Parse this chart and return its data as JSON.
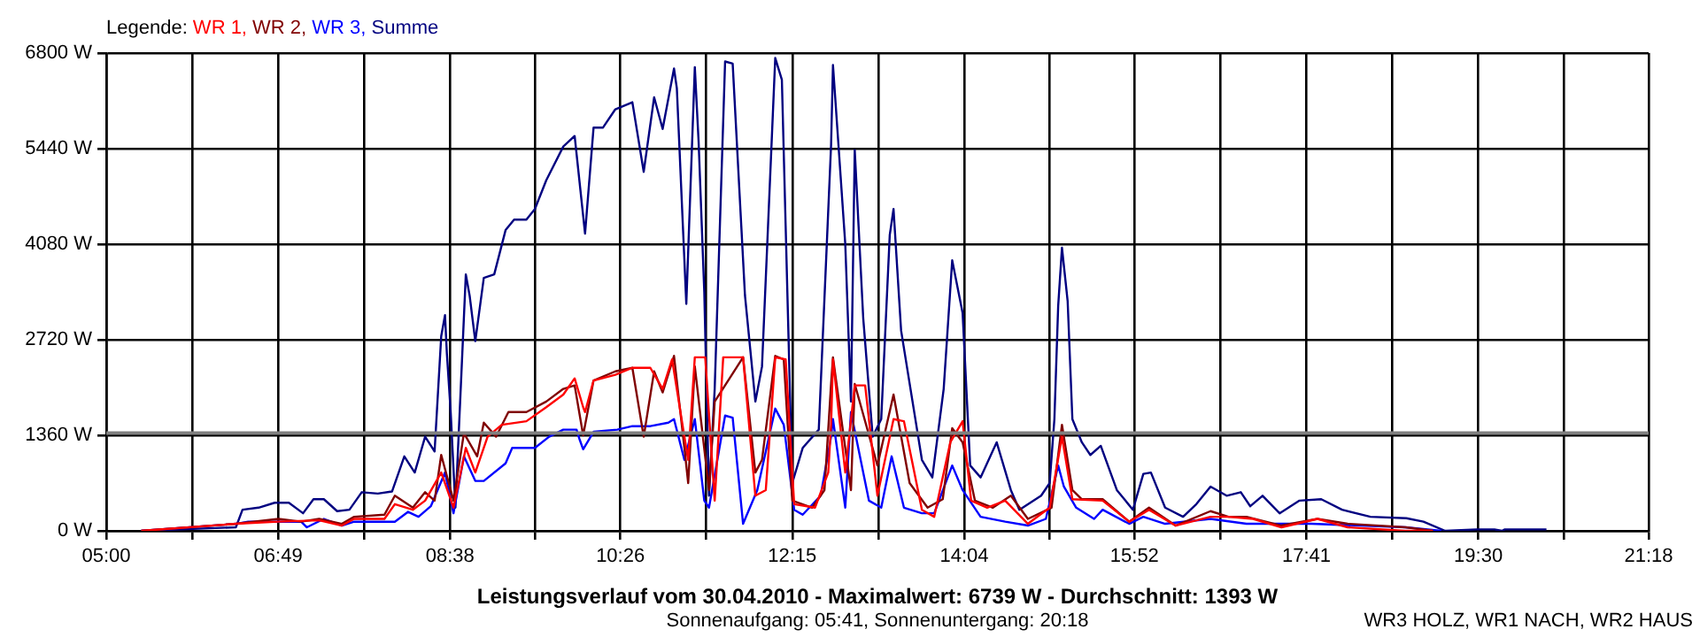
{
  "chart_data": {
    "type": "line",
    "title": "Leistungsverlauf vom 30.04.2010 - Maximalwert: 6739 W - Durchschnitt: 1393 W",
    "subtitle": "Sonnenaufgang: 05:41, Sonnenuntergang: 20:18",
    "legend_title": "Legende:",
    "annotations": [
      "WR3 HOLZ, WR1 NACH, WR2 HAUS"
    ],
    "xlim": [
      5,
      21.3
    ],
    "xticks": [
      {
        "value": 5,
        "label": "05:00"
      },
      {
        "value": 5.9083,
        "label": null
      },
      {
        "value": 6.8167,
        "label": "06:49"
      },
      {
        "value": 7.725,
        "label": null
      },
      {
        "value": 8.6333,
        "label": "08:38"
      },
      {
        "value": 9.5333,
        "label": null
      },
      {
        "value": 10.4333,
        "label": "10:26"
      },
      {
        "value": 11.3417,
        "label": null
      },
      {
        "value": 12.25,
        "label": "12:15"
      },
      {
        "value": 13.1583,
        "label": null
      },
      {
        "value": 14.0667,
        "label": "14:04"
      },
      {
        "value": 14.9667,
        "label": null
      },
      {
        "value": 15.8667,
        "label": "15:52"
      },
      {
        "value": 16.775,
        "label": null
      },
      {
        "value": 17.6833,
        "label": "17:41"
      },
      {
        "value": 18.5917,
        "label": null
      },
      {
        "value": 19.5,
        "label": "19:30"
      },
      {
        "value": 20.4,
        "label": null
      },
      {
        "value": 21.3,
        "label": "21:18"
      }
    ],
    "ylim": [
      0,
      6800
    ],
    "yticks": [
      {
        "value": 0,
        "label": "0 W"
      },
      {
        "value": 1360,
        "label": "1360 W"
      },
      {
        "value": 2720,
        "label": "2720 W"
      },
      {
        "value": 4080,
        "label": "4080 W"
      },
      {
        "value": 5440,
        "label": "5440 W"
      },
      {
        "value": 6800,
        "label": "6800 W"
      }
    ],
    "grid": true,
    "legend": "top left",
    "marker": "none",
    "line_style": "solid",
    "ref_lines": [
      {
        "axis": "y",
        "value": 1393,
        "color": "#808080"
      }
    ],
    "series": [
      {
        "name": "WR 1,",
        "color": "#ff0000",
        "x": [
          5.37,
          6.37,
          6.82,
          7.25,
          7.49,
          7.62,
          7.94,
          8.05,
          8.24,
          8.37,
          8.54,
          8.67,
          8.8,
          8.9,
          9.03,
          9.18,
          9.44,
          9.65,
          9.83,
          9.95,
          10.04,
          10.06,
          10.15,
          10.38,
          10.56,
          10.75,
          10.88,
          10.98,
          11.11,
          11.15,
          11.22,
          11.33,
          11.43,
          11.52,
          11.73,
          11.86,
          11.97,
          12.07,
          12.18,
          12.27,
          12.49,
          12.63,
          12.66,
          12.68,
          12.81,
          12.91,
          13.02,
          13.15,
          13.32,
          13.43,
          13.62,
          13.75,
          13.92,
          14.05,
          14.14,
          14.31,
          14.5,
          14.74,
          14.97,
          15.1,
          15.21,
          15.53,
          15.81,
          16.02,
          16.3,
          16.67,
          16.86,
          17.12,
          17.42,
          17.8,
          18.12,
          18.73,
          19.02
        ],
        "values": [
          0,
          100,
          130,
          150,
          75,
          170,
          170,
          380,
          300,
          430,
          830,
          330,
          1180,
          830,
          1340,
          1510,
          1560,
          1760,
          1940,
          2170,
          1760,
          1690,
          2140,
          2220,
          2320,
          2320,
          2020,
          2440,
          1340,
          1010,
          2470,
          2470,
          430,
          2470,
          2470,
          500,
          580,
          2470,
          2440,
          380,
          330,
          830,
          1510,
          2440,
          830,
          2070,
          2070,
          500,
          1590,
          1560,
          300,
          200,
          1260,
          1560,
          430,
          330,
          430,
          100,
          330,
          1340,
          450,
          430,
          130,
          300,
          75,
          200,
          200,
          170,
          50,
          170,
          50,
          0,
          0
        ]
      },
      {
        "name": "WR 2,",
        "color": "#800000",
        "x": [
          5.37,
          6.37,
          6.82,
          7.06,
          7.25,
          7.49,
          7.62,
          7.94,
          8.05,
          8.24,
          8.37,
          8.47,
          8.54,
          8.67,
          8.78,
          8.92,
          8.99,
          9.12,
          9.25,
          9.44,
          9.65,
          9.83,
          9.95,
          10.04,
          10.15,
          10.38,
          10.56,
          10.68,
          10.79,
          10.88,
          11.0,
          11.11,
          11.15,
          11.22,
          11.37,
          11.43,
          11.73,
          11.86,
          11.93,
          12.07,
          12.16,
          12.25,
          12.46,
          12.59,
          12.66,
          12.68,
          12.87,
          12.91,
          13.15,
          13.32,
          13.49,
          13.68,
          13.84,
          13.94,
          14.05,
          14.18,
          14.37,
          14.56,
          14.74,
          14.99,
          15.1,
          15.21,
          15.31,
          15.53,
          15.81,
          16.02,
          16.3,
          16.67,
          16.86,
          17.05,
          17.42,
          17.8,
          18.12,
          18.73,
          19.02
        ],
        "values": [
          0,
          100,
          170,
          130,
          170,
          100,
          200,
          230,
          500,
          330,
          550,
          430,
          1080,
          430,
          1390,
          1060,
          1540,
          1340,
          1690,
          1690,
          1840,
          2020,
          2070,
          1360,
          2140,
          2270,
          2320,
          1340,
          2270,
          1970,
          2490,
          1180,
          680,
          2340,
          580,
          1840,
          2470,
          830,
          1010,
          2490,
          2440,
          430,
          330,
          580,
          2090,
          2470,
          580,
          2090,
          930,
          1940,
          680,
          330,
          450,
          1460,
          1260,
          430,
          330,
          500,
          170,
          330,
          1510,
          580,
          450,
          450,
          130,
          330,
          75,
          280,
          200,
          200,
          75,
          170,
          100,
          50,
          0
        ]
      },
      {
        "name": "WR 3,",
        "color": "#0000ff",
        "x": [
          5.37,
          6.37,
          6.5,
          7.06,
          7.12,
          7.3,
          7.49,
          7.62,
          8.05,
          8.19,
          8.3,
          8.43,
          8.58,
          8.67,
          8.78,
          8.9,
          8.99,
          9.22,
          9.29,
          9.53,
          9.68,
          9.83,
          9.97,
          10.0,
          10.04,
          10.15,
          10.4,
          10.56,
          10.75,
          10.94,
          11.0,
          11.11,
          11.22,
          11.32,
          11.37,
          11.54,
          11.62,
          11.73,
          11.88,
          12.07,
          12.16,
          12.27,
          12.36,
          12.55,
          12.66,
          12.68,
          12.81,
          12.87,
          13.06,
          13.19,
          13.3,
          13.43,
          13.62,
          13.75,
          13.94,
          14.05,
          14.24,
          14.5,
          14.74,
          14.93,
          15.06,
          15.12,
          15.25,
          15.44,
          15.53,
          15.81,
          15.96,
          16.19,
          16.67,
          17.05,
          17.74,
          18.73,
          19.11
        ],
        "values": [
          0,
          100,
          130,
          130,
          50,
          170,
          75,
          130,
          130,
          270,
          200,
          350,
          830,
          250,
          1060,
          710,
          710,
          960,
          1180,
          1180,
          1340,
          1440,
          1440,
          1310,
          1160,
          1410,
          1440,
          1490,
          1490,
          1540,
          1590,
          1010,
          1590,
          430,
          330,
          1640,
          1610,
          100,
          580,
          1740,
          1510,
          300,
          230,
          500,
          1340,
          1590,
          330,
          1690,
          430,
          330,
          1060,
          330,
          250,
          250,
          930,
          580,
          200,
          130,
          75,
          170,
          930,
          630,
          330,
          170,
          300,
          100,
          200,
          100,
          170,
          100,
          100,
          50,
          0
        ]
      },
      {
        "name": "Summe",
        "color": "#000080",
        "x": [
          5.37,
          6.37,
          6.44,
          6.61,
          6.78,
          6.93,
          7.08,
          7.19,
          7.3,
          7.44,
          7.57,
          7.7,
          7.87,
          8.02,
          8.15,
          8.26,
          8.37,
          8.47,
          8.54,
          8.58,
          8.6,
          8.64,
          8.69,
          8.8,
          8.84,
          8.9,
          8.99,
          9.1,
          9.22,
          9.31,
          9.44,
          9.53,
          9.65,
          9.83,
          9.95,
          10.06,
          10.15,
          10.25,
          10.38,
          10.56,
          10.68,
          10.79,
          10.88,
          11.0,
          11.03,
          11.13,
          11.22,
          11.26,
          11.32,
          11.37,
          11.43,
          11.54,
          11.62,
          11.75,
          11.86,
          11.93,
          12.07,
          12.14,
          12.25,
          12.36,
          12.53,
          12.66,
          12.68,
          12.81,
          12.87,
          12.91,
          13.0,
          13.1,
          13.19,
          13.28,
          13.32,
          13.4,
          13.62,
          13.73,
          13.85,
          13.94,
          14.05,
          14.13,
          14.24,
          14.41,
          14.56,
          14.65,
          14.88,
          14.97,
          15.02,
          15.06,
          15.1,
          15.16,
          15.21,
          15.31,
          15.4,
          15.51,
          15.68,
          15.85,
          15.96,
          16.04,
          16.19,
          16.38,
          16.52,
          16.67,
          16.84,
          16.99,
          17.09,
          17.22,
          17.4,
          17.61,
          17.84,
          18.06,
          18.36,
          18.74,
          18.92,
          19.15,
          19.48,
          19.67,
          19.75,
          19.78,
          20.22
        ],
        "values": [
          0,
          50,
          300,
          330,
          400,
          400,
          250,
          450,
          450,
          280,
          300,
          550,
          530,
          560,
          1060,
          830,
          1340,
          1130,
          2770,
          3070,
          2520,
          1690,
          330,
          3650,
          3350,
          2700,
          3600,
          3650,
          4280,
          4430,
          4430,
          4580,
          4990,
          5470,
          5620,
          4230,
          5740,
          5740,
          6000,
          6100,
          5110,
          6170,
          5720,
          6580,
          6300,
          3230,
          6600,
          5540,
          3400,
          500,
          2020,
          6680,
          6650,
          3350,
          1840,
          2340,
          6730,
          6420,
          680,
          1180,
          1440,
          5490,
          6630,
          4080,
          1840,
          5420,
          3020,
          1340,
          1590,
          4210,
          4580,
          2850,
          1010,
          760,
          2020,
          3850,
          3100,
          930,
          760,
          1260,
          580,
          300,
          500,
          680,
          1590,
          3200,
          4030,
          3270,
          1590,
          1260,
          1080,
          1210,
          580,
          300,
          810,
          830,
          330,
          200,
          380,
          630,
          500,
          550,
          350,
          500,
          250,
          430,
          450,
          300,
          200,
          180,
          130,
          0,
          20,
          20,
          0,
          20,
          20
        ]
      }
    ]
  }
}
